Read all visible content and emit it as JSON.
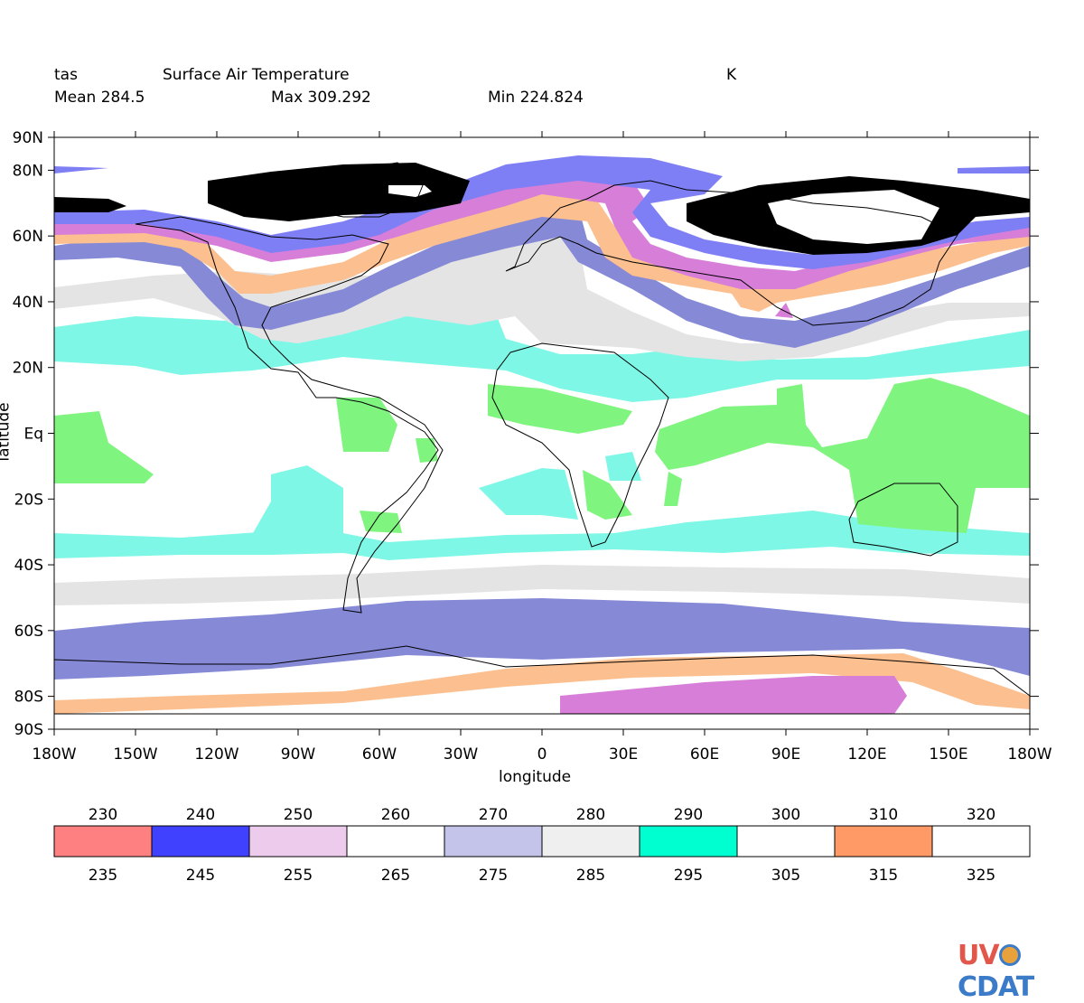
{
  "header": {
    "variable": "tas",
    "long_name": "Surface Air Temperature",
    "units": "K",
    "mean": "Mean 284.5",
    "max": "Max 309.292",
    "min": "Min 224.824"
  },
  "axes": {
    "xlabel": "longitude",
    "ylabel": "latitude",
    "x_ticks": [
      "180W",
      "150W",
      "120W",
      "90W",
      "60W",
      "30W",
      "0",
      "30E",
      "60E",
      "90E",
      "120E",
      "150E",
      "180W"
    ],
    "x_values": [
      -180,
      -150,
      -120,
      -90,
      -60,
      -30,
      0,
      30,
      60,
      90,
      120,
      150,
      180
    ],
    "y_ticks": [
      "90N",
      "80N",
      "60N",
      "40N",
      "20N",
      "Eq",
      "20S",
      "40S",
      "60S",
      "80S",
      "90S"
    ],
    "y_values": [
      90,
      80,
      60,
      40,
      20,
      0,
      -20,
      -40,
      -60,
      -80,
      -90
    ]
  },
  "legend": {
    "top_labels": [
      "230",
      "240",
      "250",
      "260",
      "270",
      "280",
      "290",
      "300",
      "310",
      "320"
    ],
    "bottom_labels": [
      "235",
      "245",
      "255",
      "265",
      "275",
      "285",
      "295",
      "305",
      "315",
      "325"
    ],
    "colors": [
      "#ff8080",
      "#4040ff",
      "#eccbec",
      "#ffffff",
      "#c4c4ea",
      "#efefef",
      "#00ffd0",
      "#ffffff",
      "#ff9966",
      "#ffffff"
    ]
  },
  "logo": {
    "text_left": "UV",
    "text_right": "CDAT",
    "color_left": "#e2574c",
    "color_right": "#3b7bc8"
  },
  "chart_data": {
    "type": "heatmap",
    "title": "Surface Air Temperature",
    "variable": "tas",
    "units": "K",
    "stats": {
      "mean": 284.5,
      "max": 309.292,
      "min": 224.824
    },
    "xlim": [
      -180,
      180
    ],
    "ylim": [
      -90,
      90
    ],
    "levels": [
      230,
      235,
      240,
      245,
      250,
      255,
      260,
      265,
      270,
      275,
      280,
      285,
      290,
      295,
      300,
      305,
      310,
      315,
      320,
      325
    ],
    "band_colors": {
      "cold_red": "#f97f7f",
      "blue": "#7f7ff5",
      "violet": "#d77fd8",
      "orange": "#fcbf8f",
      "slate": "#8689d6",
      "gray": "#e4e4e4",
      "cyan": "#7ff7e6",
      "green": "#7ff57f"
    }
  }
}
